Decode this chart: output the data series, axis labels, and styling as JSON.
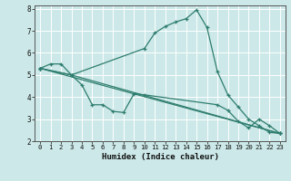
{
  "title": "",
  "xlabel": "Humidex (Indice chaleur)",
  "ylabel": "",
  "bg_color": "#cce8e8",
  "grid_color": "#ffffff",
  "line_color": "#2e7d6e",
  "xlim": [
    -0.5,
    23.5
  ],
  "ylim": [
    2,
    8.15
  ],
  "yticks": [
    2,
    3,
    4,
    5,
    6,
    7,
    8
  ],
  "xticks": [
    0,
    1,
    2,
    3,
    4,
    5,
    6,
    7,
    8,
    9,
    10,
    11,
    12,
    13,
    14,
    15,
    16,
    17,
    18,
    19,
    20,
    21,
    22,
    23
  ],
  "series": [
    {
      "x": [
        0,
        1,
        2,
        3,
        10,
        11,
        12,
        13,
        14,
        15,
        16,
        17,
        18,
        19,
        20,
        21,
        22,
        23
      ],
      "y": [
        5.3,
        5.5,
        5.5,
        5.0,
        6.2,
        6.9,
        7.2,
        7.4,
        7.55,
        7.95,
        7.15,
        5.15,
        4.1,
        3.55,
        3.0,
        2.7,
        2.4,
        2.35
      ]
    },
    {
      "x": [
        0,
        23
      ],
      "y": [
        5.3,
        2.35
      ]
    },
    {
      "x": [
        0,
        3,
        4,
        5,
        6,
        7,
        8,
        9,
        10,
        17,
        18,
        19,
        20,
        21,
        22,
        23
      ],
      "y": [
        5.3,
        5.0,
        4.55,
        3.65,
        3.65,
        3.35,
        3.3,
        4.15,
        4.1,
        3.65,
        3.4,
        2.9,
        2.6,
        3.0,
        2.7,
        2.35
      ]
    },
    {
      "x": [
        0,
        3,
        23
      ],
      "y": [
        5.3,
        5.0,
        2.35
      ]
    }
  ]
}
